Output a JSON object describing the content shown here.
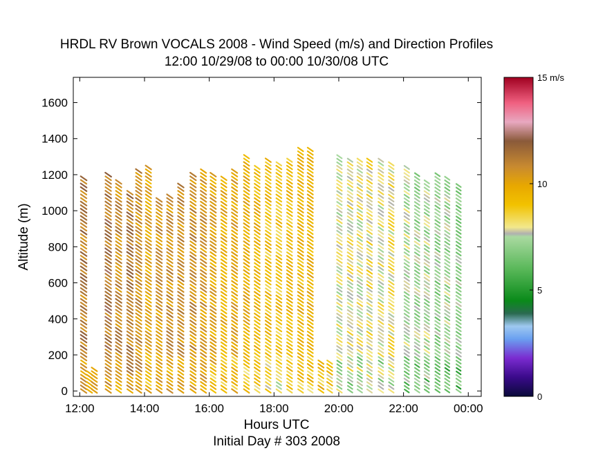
{
  "chart_data": {
    "type": "scatter",
    "title": "HRDL RV Brown VOCALS 2008 - Wind Speed (m/s) and Direction Profiles",
    "subtitle": "12:00 10/29/08 to 00:00 10/30/08  UTC",
    "xlabel": "Hours UTC",
    "xlabel2": "Initial Day # 303  2008",
    "ylabel": "Altitude (m)",
    "xlim": [
      11.8,
      24.4
    ],
    "ylim": [
      -30,
      1740
    ],
    "x_ticks": [
      12,
      14,
      16,
      18,
      20,
      22,
      24
    ],
    "x_tick_labels": [
      "12:00",
      "14:00",
      "16:00",
      "18:00",
      "20:00",
      "22:00",
      "00:00"
    ],
    "y_ticks": [
      0,
      200,
      400,
      600,
      800,
      1000,
      1200,
      1400,
      1600
    ],
    "y_tick_labels": [
      "0",
      "200",
      "400",
      "600",
      "800",
      "1000",
      "1200",
      "1400",
      "1600"
    ],
    "grid": false,
    "colorbar": {
      "range": [
        0,
        15
      ],
      "unit_label": "15 m/s",
      "tick_labels": [
        "0",
        "5",
        "10",
        "15 m/s"
      ],
      "tick_values": [
        0,
        5,
        10,
        15
      ]
    },
    "profiles": [
      {
        "t": 12.12,
        "top": 1180,
        "speed": 11.3
      },
      {
        "t": 12.3,
        "top": 110,
        "speed": 10.6
      },
      {
        "t": 12.45,
        "top": 125,
        "speed": 10.5
      },
      {
        "t": 12.88,
        "top": 1200,
        "speed": 11.5
      },
      {
        "t": 13.2,
        "top": 1170,
        "speed": 11.0
      },
      {
        "t": 13.55,
        "top": 1110,
        "speed": 11.3
      },
      {
        "t": 13.82,
        "top": 1230,
        "speed": 10.8
      },
      {
        "t": 14.12,
        "top": 1240,
        "speed": 10.0
      },
      {
        "t": 14.45,
        "top": 1070,
        "speed": 10.6
      },
      {
        "t": 14.78,
        "top": 1090,
        "speed": 10.7
      },
      {
        "t": 15.12,
        "top": 1140,
        "speed": 10.8
      },
      {
        "t": 15.5,
        "top": 1200,
        "speed": 10.7
      },
      {
        "t": 15.82,
        "top": 1230,
        "speed": 10.5
      },
      {
        "t": 16.12,
        "top": 1200,
        "speed": 10.0
      },
      {
        "t": 16.45,
        "top": 1180,
        "speed": 9.8
      },
      {
        "t": 16.78,
        "top": 1220,
        "speed": 10.2
      },
      {
        "t": 17.15,
        "top": 1300,
        "speed": 9.8
      },
      {
        "t": 17.48,
        "top": 1240,
        "speed": 9.5
      },
      {
        "t": 17.82,
        "top": 1280,
        "speed": 9.2
      },
      {
        "t": 18.15,
        "top": 1270,
        "speed": 9.0
      },
      {
        "t": 18.48,
        "top": 1290,
        "speed": 9.3
      },
      {
        "t": 18.82,
        "top": 1340,
        "speed": 9.5
      },
      {
        "t": 19.12,
        "top": 1340,
        "speed": 9.6
      },
      {
        "t": 19.45,
        "top": 170,
        "speed": 9.8
      },
      {
        "t": 19.72,
        "top": 160,
        "speed": 9.6
      },
      {
        "t": 20.02,
        "top": 1310,
        "speed": 7.8
      },
      {
        "t": 20.35,
        "top": 1290,
        "speed": 8.0
      },
      {
        "t": 20.65,
        "top": 1280,
        "speed": 7.9
      },
      {
        "t": 20.95,
        "top": 1290,
        "speed": 8.2
      },
      {
        "t": 21.3,
        "top": 1290,
        "speed": 7.9
      },
      {
        "t": 21.62,
        "top": 1260,
        "speed": 8.1
      },
      {
        "t": 22.1,
        "top": 1250,
        "speed": 7.5
      },
      {
        "t": 22.42,
        "top": 1200,
        "speed": 7.2
      },
      {
        "t": 22.72,
        "top": 1160,
        "speed": 7.3
      },
      {
        "t": 23.05,
        "top": 1200,
        "speed": 7.0
      },
      {
        "t": 23.35,
        "top": 1180,
        "speed": 7.2
      },
      {
        "t": 23.7,
        "top": 1150,
        "speed": 6.9
      }
    ]
  }
}
